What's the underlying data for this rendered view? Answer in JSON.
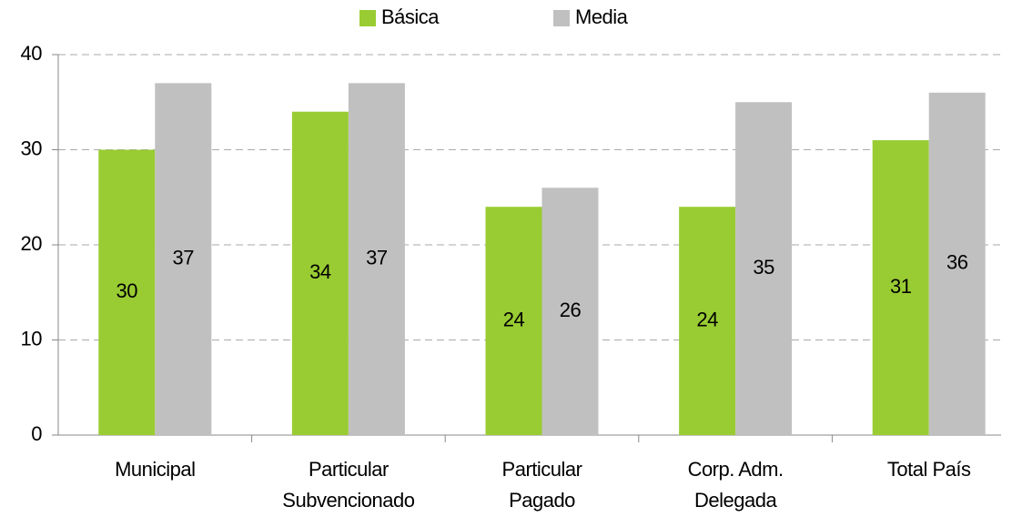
{
  "chart_data": {
    "type": "bar",
    "categories": [
      [
        "Municipal"
      ],
      [
        "Particular",
        "Subvencionado"
      ],
      [
        "Particular",
        "Pagado"
      ],
      [
        "Corp. Adm.",
        "Delegada"
      ],
      [
        "Total País"
      ]
    ],
    "series": [
      {
        "name": "Básica",
        "color": "#99cc33",
        "values": [
          30,
          34,
          24,
          24,
          31
        ]
      },
      {
        "name": "Media",
        "color": "#c0c0c0",
        "values": [
          37,
          37,
          26,
          35,
          36
        ]
      }
    ],
    "ylim": [
      0,
      40
    ],
    "yticks": [
      0,
      10,
      20,
      30,
      40
    ],
    "grid": true,
    "legend": "top"
  }
}
